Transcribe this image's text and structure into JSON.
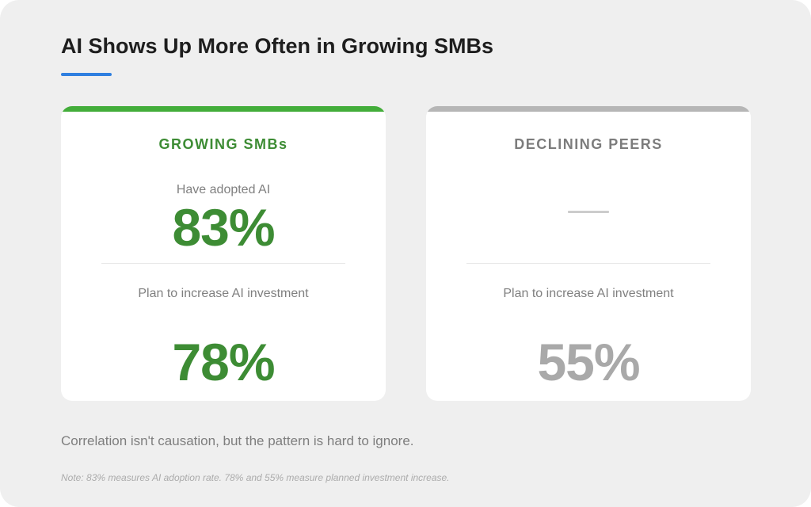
{
  "title": "AI Shows Up More Often in Growing SMBs",
  "colors": {
    "accent_blue": "#2f7fe0",
    "growing_green": "#3d8c34",
    "growing_bar": "#43ad3a",
    "declining_gray": "#a9a9a9",
    "declining_bar": "#b6b6b6"
  },
  "cards": {
    "growing": {
      "heading": "GROWING SMBs",
      "metric1_label": "Have adopted AI",
      "metric1_value": "83%",
      "metric2_label": "Plan to increase AI investment",
      "metric2_value": "78%"
    },
    "declining": {
      "heading": "DECLINING PEERS",
      "metric1_value": "",
      "metric2_label": "Plan to increase AI investment",
      "metric2_value": "55%"
    }
  },
  "caption": "Correlation isn't causation, but the pattern is hard to ignore.",
  "footnote": "Note: 83% measures AI adoption rate. 78% and 55% measure planned investment increase."
}
